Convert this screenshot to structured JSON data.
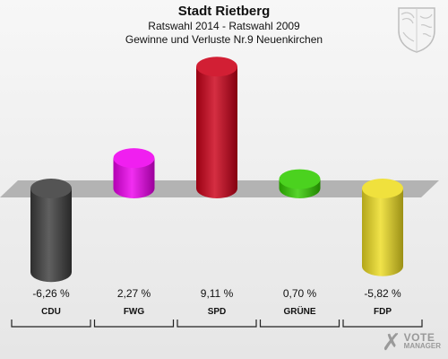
{
  "header": {
    "title": "Stadt Rietberg",
    "subtitle_1": "Ratswahl 2014 - Ratswahl 2009",
    "subtitle_2": "Gewinne und Verluste Nr.9 Neuenkirchen"
  },
  "logo": {
    "line1": "VOTE",
    "line2": "MANAGER",
    "mark": "✗"
  },
  "crest": {
    "icon": "coat-of-arms-icon"
  },
  "chart_data": {
    "type": "bar",
    "categories": [
      "CDU",
      "FWG",
      "SPD",
      "GRÜNE",
      "FDP"
    ],
    "values": [
      -6.26,
      2.27,
      9.11,
      0.7,
      -5.82
    ],
    "value_labels": [
      "-6,26 %",
      "2,27 %",
      "9,11 %",
      "0,70 %",
      "-5,82 %"
    ],
    "colors": [
      "#3d3d3d",
      "#ee00ee",
      "#cc0018",
      "#33cc00",
      "#eedd22"
    ],
    "title": "Stadt Rietberg",
    "subtitle": "Ratswahl 2014 - Ratswahl 2009 / Gewinne und Verluste Nr.9 Neuenkirchen",
    "xlabel": "",
    "ylabel": "",
    "unit": "%",
    "grid": false,
    "legend": "none",
    "baseline": 0
  }
}
